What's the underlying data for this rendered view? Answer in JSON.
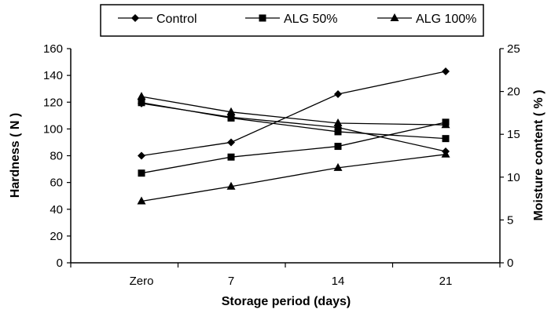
{
  "chart_data": {
    "type": "line",
    "categories": [
      "Zero",
      "7",
      "14",
      "21"
    ],
    "xlabel": "Storage period (days)",
    "ylabel": "Hardness ( N )",
    "ylabel_right": "Moisture content  ( % )",
    "ylim": [
      0,
      160
    ],
    "yticks": [
      "0",
      "20",
      "40",
      "60",
      "80",
      "100",
      "120",
      "140",
      "160"
    ],
    "ylim_right": [
      0,
      25
    ],
    "yticks_right": [
      "0",
      "5",
      "10",
      "15",
      "20",
      "25"
    ],
    "grid": false,
    "legend_position": "top-center",
    "series": [
      {
        "name": "Control",
        "marker": "diamond",
        "axis": "left",
        "values": [
          80,
          90,
          126,
          143
        ]
      },
      {
        "name": "ALG 50%",
        "marker": "square",
        "axis": "left",
        "values": [
          67,
          79,
          87,
          105
        ]
      },
      {
        "name": "ALG 100%",
        "marker": "triangle",
        "axis": "left",
        "values": [
          46,
          57,
          71,
          81
        ]
      },
      {
        "marker": "diamond",
        "axis": "right",
        "values": [
          18.6,
          17.0,
          15.8,
          13.0
        ]
      },
      {
        "marker": "square",
        "axis": "right",
        "values": [
          18.7,
          16.9,
          15.3,
          14.5
        ]
      },
      {
        "marker": "triangle",
        "axis": "right",
        "values": [
          19.4,
          17.6,
          16.3,
          16.1
        ]
      }
    ]
  }
}
